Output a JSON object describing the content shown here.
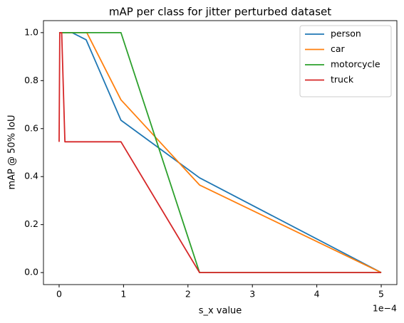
{
  "chart_data": {
    "type": "line",
    "title": "mAP per class for jitter perturbed dataset",
    "x_label": "s_x value",
    "y_label": "mAP @ 50% IoU",
    "x_offset_label": "1e−4",
    "xlim": [
      -0.243,
      5.243
    ],
    "ylim": [
      -0.05,
      1.05
    ],
    "xticks": [
      0,
      1,
      2,
      3,
      4,
      5
    ],
    "yticks": [
      {
        "value": 0,
        "label": "0.0"
      },
      {
        "value": 0.2,
        "label": "0.2"
      },
      {
        "value": 0.4,
        "label": "0.4"
      },
      {
        "value": 0.6,
        "label": "0.6"
      },
      {
        "value": 0.8,
        "label": "0.8"
      },
      {
        "value": 1,
        "label": "1.0"
      }
    ],
    "grid": false,
    "legend": "upper right",
    "series": [
      {
        "name": "person",
        "color": "#1f77b4",
        "x": [
          0,
          0.2,
          0.42,
          0.96,
          2.18,
          5
        ],
        "values": [
          1.0,
          1.0,
          0.97,
          0.635,
          0.395,
          0.0
        ]
      },
      {
        "name": "car",
        "color": "#ff7f0e",
        "x": [
          0,
          0.43,
          0.96,
          2.18,
          5
        ],
        "values": [
          1.0,
          1.0,
          0.72,
          0.365,
          0.0
        ]
      },
      {
        "name": "motorcycle",
        "color": "#2ca02c",
        "x": [
          0,
          0.96,
          2.18,
          5
        ],
        "values": [
          1.0,
          1.0,
          0.0,
          0.0
        ]
      },
      {
        "name": "truck",
        "color": "#d62728",
        "x": [
          0,
          0.01,
          0.04,
          0.09,
          0.96,
          2.18,
          5
        ],
        "values": [
          0.545,
          1.0,
          1.0,
          0.545,
          0.545,
          0.0,
          0.0
        ]
      }
    ]
  }
}
